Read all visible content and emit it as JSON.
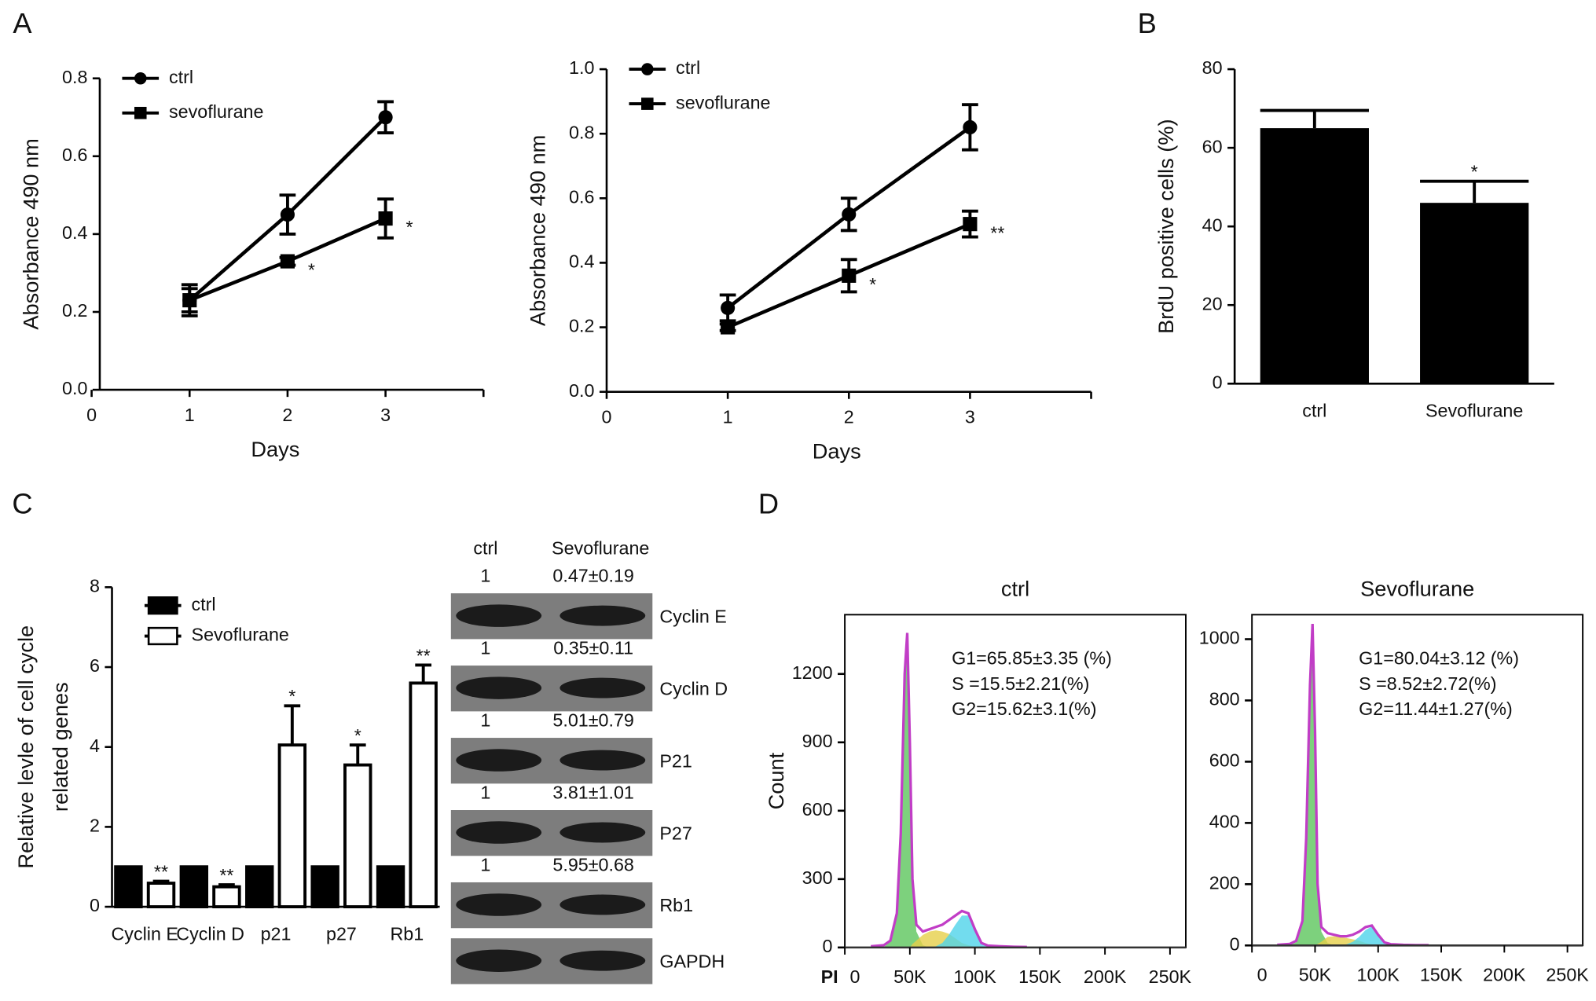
{
  "panel_labels": [
    "A",
    "B",
    "C",
    "D"
  ],
  "western_blot": {
    "columns": [
      "ctrl",
      "Sevoflurane"
    ],
    "rows": [
      {
        "protein": "Cyclin E",
        "ctrl": 1,
        "sevoflurane": "0.47±0.19"
      },
      {
        "protein": "Cyclin D",
        "ctrl": 1,
        "sevoflurane": "0.35±0.11"
      },
      {
        "protein": "P21",
        "ctrl": 1,
        "sevoflurane": "5.01±0.79"
      },
      {
        "protein": "P27",
        "ctrl": 1,
        "sevoflurane": "3.81±1.01"
      },
      {
        "protein": "Rb1",
        "ctrl": 1,
        "sevoflurane": "5.95±0.68"
      },
      {
        "protein": "GAPDH"
      }
    ]
  },
  "chart_data": [
    {
      "type": "line",
      "xlabel": "Days",
      "ylabel": "Absorbance 490 nm",
      "legend": "upper left",
      "x": [
        1,
        2,
        3
      ],
      "xlim": [
        0,
        4
      ],
      "xticks": [
        0,
        1,
        2,
        3
      ],
      "ylim": [
        0,
        0.8
      ],
      "yticks": [
        {
          "value": 0,
          "label": "0.0"
        },
        0.2,
        0.4,
        0.6,
        0.8
      ],
      "series": [
        {
          "name": "ctrl",
          "color": "#000000",
          "marker": "circle",
          "values": [
            0.23,
            0.45,
            0.7
          ],
          "errors": [
            0.03,
            0.05,
            0.04
          ],
          "significance": [
            null,
            null,
            null
          ]
        },
        {
          "name": "sevoflurane",
          "color": "#000000",
          "marker": "square",
          "values": [
            0.23,
            0.33,
            0.44
          ],
          "errors": [
            0.04,
            0.01,
            0.05
          ],
          "significance": [
            null,
            "*",
            "*"
          ]
        }
      ]
    },
    {
      "type": "line",
      "xlabel": "Days",
      "ylabel": "Absorbance 490 nm",
      "legend": "upper left",
      "x": [
        1,
        2,
        3
      ],
      "xlim": [
        0,
        4
      ],
      "xticks": [
        0,
        1,
        2,
        3
      ],
      "ylim": [
        0,
        1.0
      ],
      "yticks": [
        {
          "value": 0,
          "label": "0.0"
        },
        0.2,
        0.4,
        0.6,
        0.8,
        {
          "value": 1.0,
          "label": "1.0"
        }
      ],
      "series": [
        {
          "name": "ctrl",
          "color": "#000000",
          "marker": "circle",
          "values": [
            0.26,
            0.55,
            0.82
          ],
          "errors": [
            0.04,
            0.05,
            0.07
          ],
          "significance": [
            null,
            null,
            null
          ]
        },
        {
          "name": "sevoflurane",
          "color": "#000000",
          "marker": "square",
          "values": [
            0.2,
            0.36,
            0.52
          ],
          "errors": [
            0.01,
            0.05,
            0.04
          ],
          "significance": [
            null,
            "*",
            "**"
          ]
        }
      ]
    },
    {
      "type": "bar",
      "ylabel": "BrdU positive cells (%)",
      "categories": [
        "ctrl",
        "Sevoflurane"
      ],
      "values": [
        65,
        46
      ],
      "errors": [
        4.5,
        5.5
      ],
      "significance": [
        null,
        "*"
      ],
      "color": "#000000",
      "ylim": [
        0,
        80
      ],
      "yticks": [
        0,
        20,
        40,
        60,
        80
      ]
    },
    {
      "type": "bar",
      "ylabel": [
        "Relative levle of cell cycle",
        "related genes"
      ],
      "legend": "upper left",
      "categories": [
        "Cyclin E",
        "Cyclin D",
        "p21",
        "p27",
        "Rb1"
      ],
      "series": [
        {
          "name": "ctrl",
          "color": "#000000",
          "values": [
            1,
            1,
            1,
            1,
            1
          ]
        },
        {
          "name": "Sevoflurane",
          "color": "#ffffff",
          "values": [
            0.59,
            0.5,
            4.05,
            3.55,
            5.6
          ],
          "errors": [
            0.05,
            0.05,
            0.98,
            0.5,
            0.45
          ],
          "significance": [
            "**",
            "**",
            "*",
            "*",
            "**"
          ]
        }
      ],
      "ylim": [
        0,
        8
      ],
      "yticks": [
        0,
        2,
        4,
        6,
        8
      ]
    },
    {
      "type": "area",
      "title": "ctrl",
      "xlabel": "PI",
      "ylabel": "Count",
      "annotations": [
        "G1=65.85±3.35 (%)",
        "S =15.5±2.21(%)",
        "G2=15.62±3.1(%)"
      ],
      "xlim": [
        0,
        262144
      ],
      "xticks": [
        0,
        {
          "value": 50000,
          "label": "50K"
        },
        {
          "value": 100000,
          "label": "100K"
        },
        {
          "value": 150000,
          "label": "150K"
        },
        {
          "value": 200000,
          "label": "200K"
        },
        {
          "value": 250000,
          "label": "250K"
        }
      ],
      "ylim": [
        0,
        1460
      ],
      "yticks": [
        0,
        300,
        600,
        900,
        1200
      ],
      "x": [
        20000,
        30000,
        35000,
        40000,
        43000,
        46000,
        48000,
        50000,
        52000,
        55000,
        60000,
        65000,
        70000,
        75000,
        80000,
        85000,
        90000,
        95000,
        100000,
        105000,
        110000,
        120000,
        130000,
        140000
      ],
      "values": [
        5,
        10,
        30,
        150,
        500,
        1200,
        1380,
        900,
        300,
        100,
        70,
        80,
        90,
        100,
        120,
        140,
        160,
        150,
        80,
        20,
        8,
        5,
        3,
        2
      ],
      "color": "#c13dc6",
      "components": [
        {
          "color": "#5cc65c",
          "values": [
            0,
            2,
            25,
            140,
            480,
            1180,
            1370,
            880,
            280,
            70,
            10,
            0,
            0,
            0,
            0,
            0,
            0,
            0,
            0,
            0,
            0,
            0,
            0,
            0
          ]
        },
        {
          "color": "#e6cf4a",
          "values": [
            0,
            0,
            0,
            0,
            0,
            0,
            0,
            0,
            15,
            30,
            55,
            70,
            75,
            70,
            60,
            40,
            20,
            10,
            3,
            0,
            0,
            0,
            0,
            0
          ]
        },
        {
          "color": "#4fd3ea",
          "values": [
            0,
            0,
            0,
            0,
            0,
            0,
            0,
            0,
            0,
            0,
            0,
            0,
            5,
            20,
            55,
            100,
            140,
            140,
            75,
            18,
            4,
            0,
            0,
            0
          ]
        }
      ]
    },
    {
      "type": "area",
      "title": "Sevoflurane",
      "annotations": [
        "G1=80.04±3.12 (%)",
        "S =8.52±2.72(%)",
        "G2=11.44±1.27(%)"
      ],
      "xlim": [
        0,
        262144
      ],
      "xticks": [
        0,
        {
          "value": 50000,
          "label": "50K"
        },
        {
          "value": 100000,
          "label": "100K"
        },
        {
          "value": 150000,
          "label": "150K"
        },
        {
          "value": 200000,
          "label": "200K"
        },
        {
          "value": 250000,
          "label": "250K"
        }
      ],
      "ylim": [
        0,
        1080
      ],
      "yticks": [
        0,
        200,
        400,
        600,
        800,
        1000
      ],
      "x": [
        20000,
        30000,
        35000,
        40000,
        43000,
        46000,
        48000,
        50000,
        52000,
        55000,
        60000,
        65000,
        70000,
        75000,
        80000,
        85000,
        90000,
        95000,
        100000,
        105000,
        110000,
        120000,
        130000,
        140000
      ],
      "values": [
        2,
        5,
        15,
        80,
        350,
        850,
        1050,
        700,
        200,
        60,
        40,
        35,
        30,
        30,
        35,
        45,
        60,
        65,
        35,
        10,
        4,
        2,
        1,
        1
      ],
      "color": "#c13dc6",
      "components": [
        {
          "color": "#5cc65c",
          "values": [
            0,
            1,
            10,
            75,
            340,
            840,
            1040,
            690,
            190,
            45,
            8,
            0,
            0,
            0,
            0,
            0,
            0,
            0,
            0,
            0,
            0,
            0,
            0,
            0
          ]
        },
        {
          "color": "#e6cf4a",
          "values": [
            0,
            0,
            0,
            0,
            0,
            0,
            0,
            0,
            5,
            12,
            28,
            30,
            28,
            24,
            20,
            15,
            8,
            3,
            0,
            0,
            0,
            0,
            0,
            0
          ]
        },
        {
          "color": "#4fd3ea",
          "values": [
            0,
            0,
            0,
            0,
            0,
            0,
            0,
            0,
            0,
            0,
            0,
            0,
            0,
            4,
            12,
            28,
            50,
            62,
            35,
            8,
            2,
            0,
            0,
            0
          ]
        }
      ]
    }
  ]
}
